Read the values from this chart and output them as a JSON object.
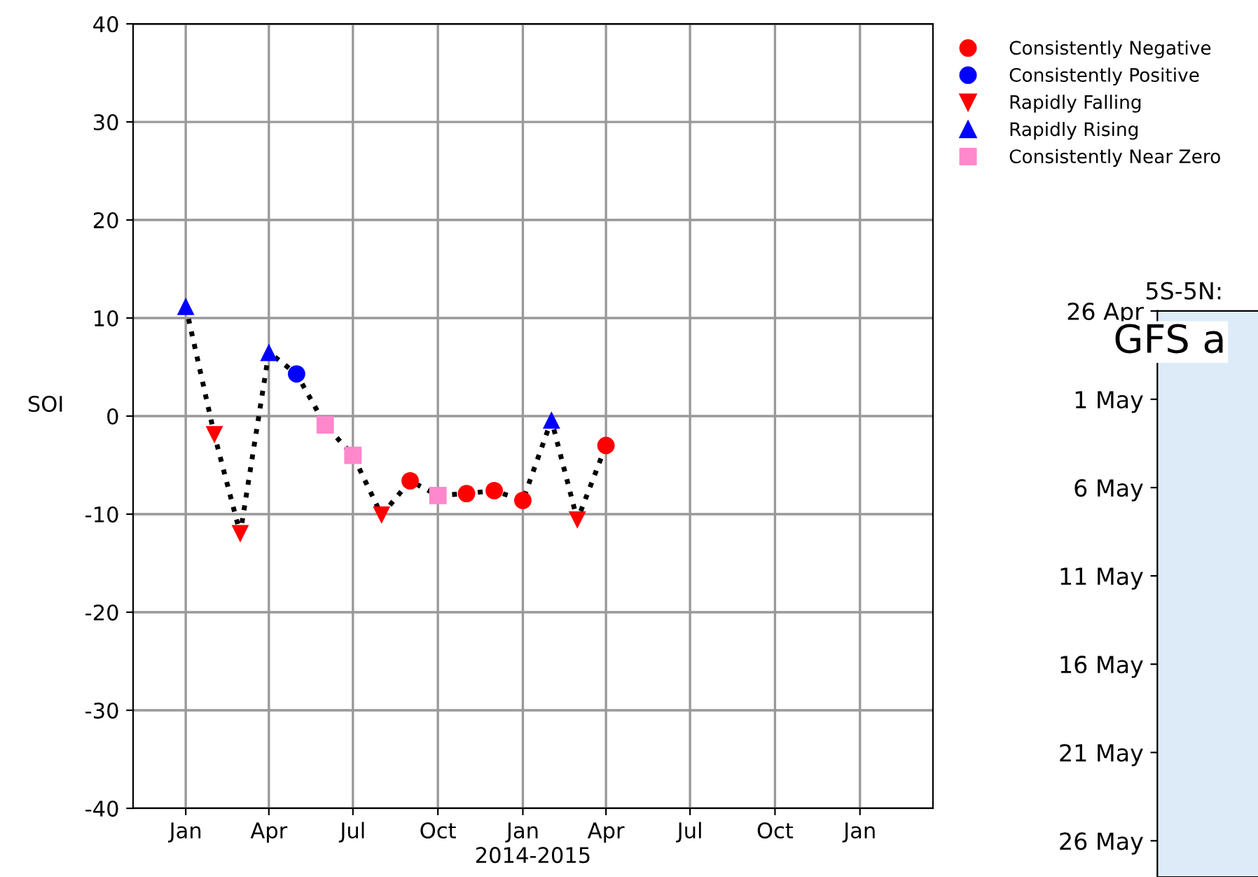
{
  "chart_data": [
    {
      "type": "line",
      "xlabel": "2014-2015",
      "ylabel": "SOI",
      "xlim": [
        "2013-11-05",
        "2016-03-20"
      ],
      "ylim": [
        -40,
        40
      ],
      "xticks": [
        {
          "value": "2014-01",
          "label": "Jan"
        },
        {
          "value": "2014-04",
          "label": "Apr"
        },
        {
          "value": "2014-07",
          "label": "Jul"
        },
        {
          "value": "2014-10",
          "label": "Oct"
        },
        {
          "value": "2015-01",
          "label": "Jan"
        },
        {
          "value": "2015-04",
          "label": "Apr"
        },
        {
          "value": "2015-07",
          "label": "Jul"
        },
        {
          "value": "2015-10",
          "label": "Oct"
        },
        {
          "value": "2016-01",
          "label": "Jan"
        }
      ],
      "yticks": [
        -40,
        -30,
        -20,
        -10,
        0,
        10,
        20,
        30,
        40
      ],
      "grid": true,
      "legend": "top right",
      "series": [
        {
          "type": "line",
          "color": "#000000",
          "line_style": "dotted",
          "marker": "none",
          "x": [
            "2014-01",
            "2014-02",
            "2014-03",
            "2014-04",
            "2014-05",
            "2014-06",
            "2014-07",
            "2014-08",
            "2014-09",
            "2014-10",
            "2014-11",
            "2014-12",
            "2015-01",
            "2015-02",
            "2015-03",
            "2015-04"
          ],
          "values": [
            11.2,
            -1.9,
            -12.0,
            6.5,
            4.3,
            -0.9,
            -4.0,
            -10.1,
            -6.6,
            -8.1,
            -7.9,
            -7.6,
            -8.6,
            -0.4,
            -10.6,
            -3.0
          ]
        },
        {
          "type": "scatter",
          "name": "Consistently Negative",
          "color": "#ff0000",
          "marker": "circle",
          "x": [
            "2014-09",
            "2014-11",
            "2014-12",
            "2015-01",
            "2015-04"
          ],
          "values": [
            -6.6,
            -7.9,
            -7.6,
            -8.6,
            -3.0
          ]
        },
        {
          "type": "scatter",
          "name": "Consistently Positive",
          "color": "#0000ff",
          "marker": "circle",
          "x": [
            "2014-05"
          ],
          "values": [
            4.3
          ]
        },
        {
          "type": "scatter",
          "name": "Rapidly Falling",
          "color": "#ff0000",
          "marker": "triangle_down",
          "x": [
            "2014-02",
            "2014-03",
            "2014-08",
            "2015-03"
          ],
          "values": [
            -1.9,
            -12.0,
            -10.1,
            -10.6
          ]
        },
        {
          "type": "scatter",
          "name": "Rapidly Rising",
          "color": "#0000ff",
          "marker": "triangle",
          "x": [
            "2014-01",
            "2014-04",
            "2015-02"
          ],
          "values": [
            11.2,
            6.5,
            -0.4
          ]
        },
        {
          "type": "scatter",
          "name": "Consistently Near Zero",
          "color": "#ff88cc",
          "marker": "square",
          "x": [
            "2014-06",
            "2014-07",
            "2014-10"
          ],
          "values": [
            -0.9,
            -4.0,
            -8.1
          ]
        }
      ]
    },
    {
      "type": "other",
      "title": "5S-5N:",
      "annotations": [
        "GFS a"
      ],
      "y_categories": [
        "26 Apr",
        "1 May",
        "6 May",
        "11 May",
        "16 May",
        "21 May",
        "26 May"
      ]
    }
  ]
}
